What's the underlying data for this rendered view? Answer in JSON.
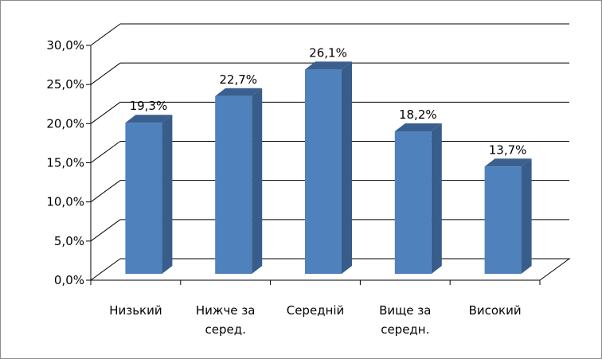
{
  "chart_data": {
    "type": "bar",
    "style": "3d-column",
    "categories": [
      [
        "Низький"
      ],
      [
        "Нижче за",
        "серед."
      ],
      [
        "Середній"
      ],
      [
        "Вище за",
        "середн."
      ],
      [
        "Високий"
      ]
    ],
    "values": [
      19.3,
      22.7,
      26.1,
      18.2,
      13.7
    ],
    "data_labels": [
      "19,3%",
      "22,7%",
      "26,1%",
      "18,2%",
      "13,7%"
    ],
    "ylim": [
      0,
      30
    ],
    "yticks": [
      0,
      5,
      10,
      15,
      20,
      25,
      30
    ],
    "ytick_labels": [
      "0,0%",
      "5,0%",
      "10,0%",
      "15,0%",
      "20,0%",
      "25,0%",
      "30,0%"
    ],
    "title": "",
    "xlabel": "",
    "ylabel": "",
    "grid": true,
    "legend": "none",
    "colors": {
      "bar_front": "#4f81bd",
      "bar_side": "#385d8a",
      "bar_top": "#3b5f8f",
      "gridline": "#000000",
      "frame_border": "#8c8c8c"
    }
  }
}
